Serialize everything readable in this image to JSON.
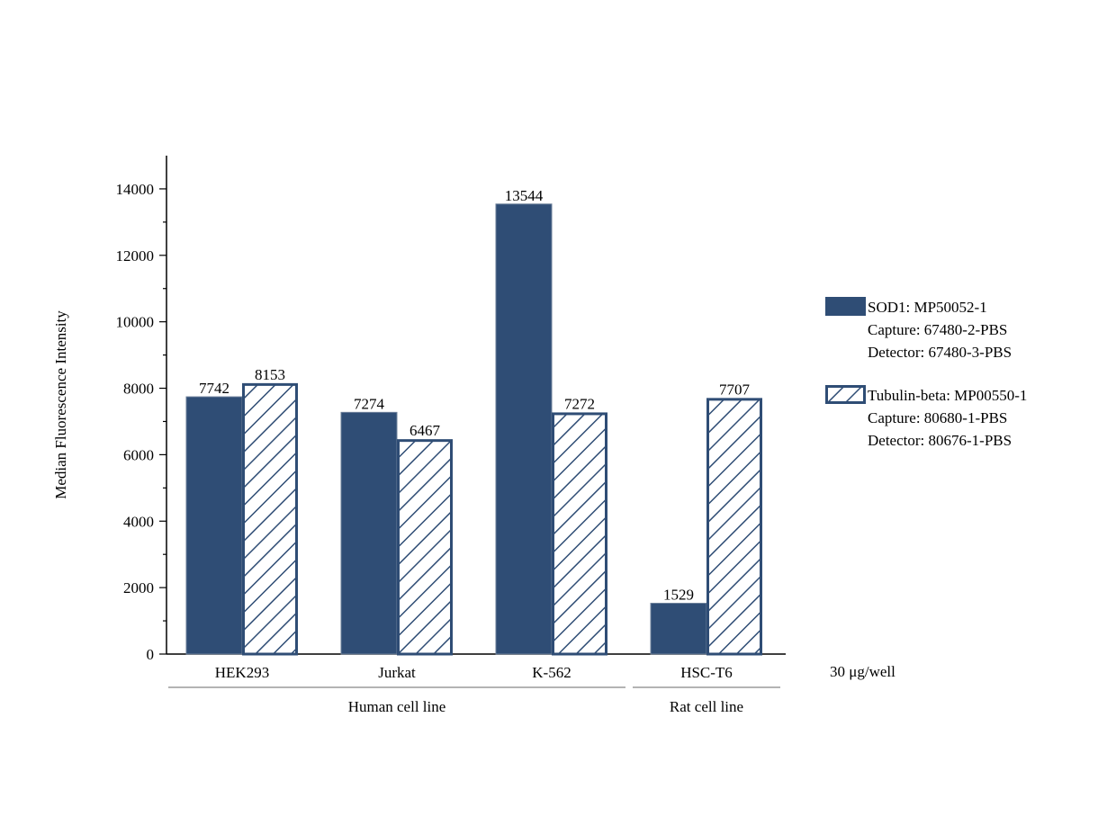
{
  "chart_data": {
    "type": "bar",
    "title": "",
    "xlabel": "",
    "ylabel": "Median Fluorescence Intensity",
    "ylim": [
      0,
      15000
    ],
    "yticks": [
      0,
      2000,
      4000,
      6000,
      8000,
      10000,
      12000,
      14000
    ],
    "grid": false,
    "legend_position": "right",
    "categories": [
      "HEK293",
      "Jurkat",
      "K-562",
      "HSC-T6"
    ],
    "groups": [
      {
        "label": "Human cell line",
        "categories": [
          "HEK293",
          "Jurkat",
          "K-562"
        ]
      },
      {
        "label": "Rat cell line",
        "categories": [
          "HSC-T6"
        ]
      }
    ],
    "annotation": "30 μg/well",
    "series": [
      {
        "name": "SOD1: MP50052-1",
        "legend_lines": [
          "SOD1: MP50052-1",
          "Capture: 67480-2-PBS",
          "Detector: 67480-3-PBS"
        ],
        "fill": "solid",
        "color": "#2F4D75",
        "values": [
          7742,
          7274,
          13544,
          1529
        ]
      },
      {
        "name": "Tubulin-beta: MP00550-1",
        "legend_lines": [
          "Tubulin-beta: MP00550-1",
          "Capture: 80680-1-PBS",
          "Detector: 80676-1-PBS"
        ],
        "fill": "hatched",
        "color": "#2F4D75",
        "values": [
          8153,
          6467,
          7272,
          7707
        ]
      }
    ]
  }
}
